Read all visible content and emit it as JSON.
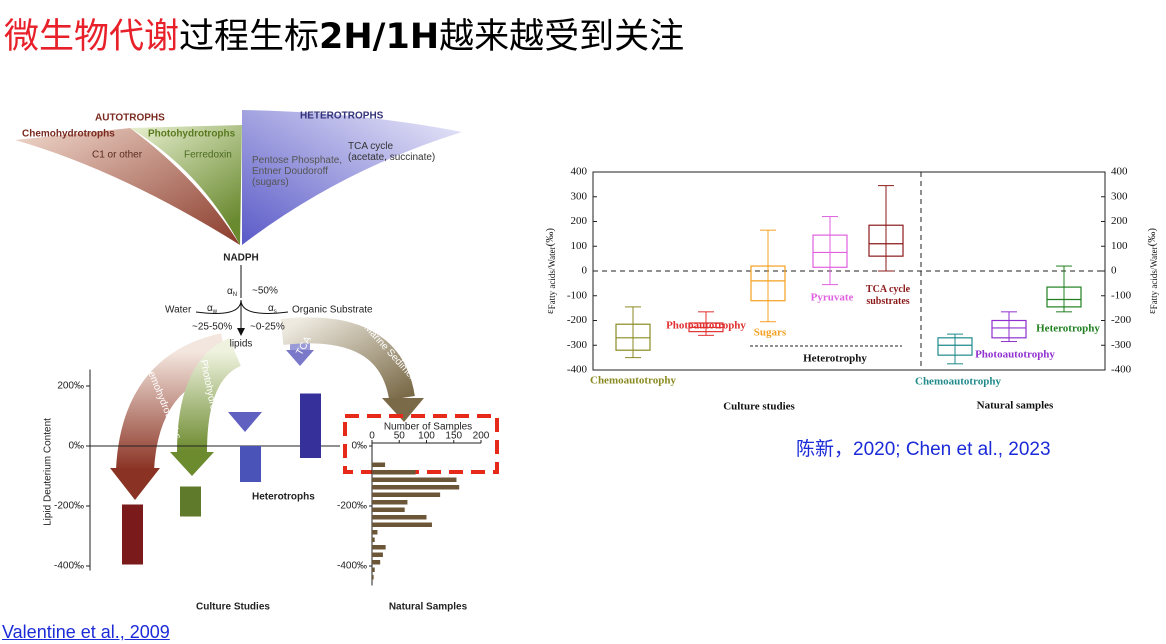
{
  "title": {
    "red": "微生物代谢",
    "plain": "过程生标",
    "bold": "2H/1H",
    "rest": "越来越受到关注"
  },
  "citations": {
    "left": "Valentine et al., 2009",
    "right": "陈新，2020; Chen et al., 2023"
  },
  "left_figure": {
    "autotrophs": "AUTOTROPHS",
    "heterotrophs_head": "HETEROTROPHS",
    "chemohydrotrophs": "Chemohydrotrophs",
    "photohydrotrophs": "Photohydrotrophs",
    "c1": "C1 or other",
    "ferredoxin": "Ferredoxin",
    "pentose": [
      "Pentose Phosphate,",
      "Entner Doudoroff",
      "(sugars)"
    ],
    "tca_cycle": [
      "TCA cycle",
      "(acetate, succinate)"
    ],
    "nadph": "NADPH",
    "alpha": "α",
    "alpha_n": "N",
    "alpha_w": "w",
    "alpha_s": "s",
    "pct50": "~50%",
    "water": "Water",
    "organic": "Organic Substrate",
    "pct25_50": "~25-50%",
    "pct0_25": "~0-25%",
    "lipids": "lipids",
    "arrow_chemo": "Chemohydrotrophs",
    "arrow_photo": "Photohydrotrophs",
    "arrow_sugars": "Sugars",
    "arrow_tca": "TCA",
    "arrow_marine": "Marine Sediment",
    "heterotrophs": "Heterotrophs",
    "ylabel": "Lipid Deuterium Content",
    "culture": "Culture Studies",
    "natural": "Natural Samples",
    "ylim": [
      -415,
      255
    ],
    "yticks": [
      {
        "value": 200,
        "label": "200‰"
      },
      {
        "value": 0,
        "label": "0‰"
      },
      {
        "value": -200,
        "label": "-200‰"
      },
      {
        "value": -400,
        "label": "-400‰"
      }
    ],
    "bars": [
      {
        "color": "#7a1a1a",
        "low": -395,
        "high": -195
      },
      {
        "color": "#5f7a2a",
        "low": -235,
        "high": -135
      },
      {
        "color": "#4a54b8",
        "low": -120,
        "high": 0
      },
      {
        "color": "#35309a",
        "low": -40,
        "high": 175
      }
    ],
    "histogram": {
      "xlabel": "Number of Samples",
      "xlim": [
        0,
        200
      ],
      "xticks": [
        0,
        50,
        100,
        150,
        200
      ],
      "ylim": [
        -465,
        20
      ],
      "yticks": [
        {
          "value": 0,
          "label": "0‰"
        },
        {
          "value": -200,
          "label": "-200‰"
        },
        {
          "value": -400,
          "label": "-400‰"
        }
      ],
      "bins": [
        -50,
        -75,
        -100,
        -125,
        -150,
        -175,
        -200,
        -225,
        -250,
        -275,
        -300,
        -325,
        -350,
        -375,
        -400,
        -425,
        -450
      ],
      "counts": [
        24,
        80,
        155,
        160,
        125,
        65,
        60,
        100,
        110,
        10,
        5,
        25,
        20,
        15,
        5,
        3
      ],
      "color": "#6b5638"
    }
  },
  "chart_data": {
    "type": "box",
    "ylabel": {
      "base": "ε",
      "sub": "Fatty acids/Water",
      "unit": "(‰)"
    },
    "ylim": [
      -400,
      400
    ],
    "yticks": [
      400,
      300,
      200,
      100,
      0,
      -100,
      -200,
      -300,
      -400
    ],
    "y2lim": [
      -400,
      400
    ],
    "y2ticks": [
      400,
      300,
      200,
      100,
      0,
      -100,
      -200,
      -300,
      -400
    ],
    "series": [
      {
        "name": "Chemoautotrophy",
        "color": "#8a8a22",
        "min": -350,
        "q1": -320,
        "median": -270,
        "q3": -215,
        "max": -145
      },
      {
        "name": "Photoautotrophy",
        "color": "#e03030",
        "min": -260,
        "q1": -245,
        "median": -228,
        "q3": -210,
        "max": -165
      },
      {
        "name": "Sugars",
        "color": "#f5a020",
        "min": -205,
        "q1": -120,
        "median": -40,
        "q3": 20,
        "max": 165
      },
      {
        "name": "Pyruvate",
        "color": "#e060e0",
        "min": -55,
        "q1": 15,
        "median": 75,
        "q3": 145,
        "max": 220
      },
      {
        "name": "TCA cycle substrates",
        "color": "#8b1a1a",
        "min": 0,
        "q1": 60,
        "median": 110,
        "q3": 185,
        "max": 345
      },
      {
        "name": "Chemoautotrophy",
        "color": "#208a8a",
        "min": -375,
        "q1": -340,
        "median": -300,
        "q3": -270,
        "max": -255
      },
      {
        "name": "Photoautotrophy",
        "color": "#9030d0",
        "min": -285,
        "q1": -270,
        "median": -230,
        "q3": -200,
        "max": -165
      },
      {
        "name": "Heterotrophy",
        "color": "#208020",
        "min": -165,
        "q1": -145,
        "median": -115,
        "q3": -65,
        "max": 20
      }
    ],
    "annotations": {
      "heterotrophy": "Heterotrophy",
      "culture": "Culture studies",
      "natural": "Natural samples"
    }
  }
}
